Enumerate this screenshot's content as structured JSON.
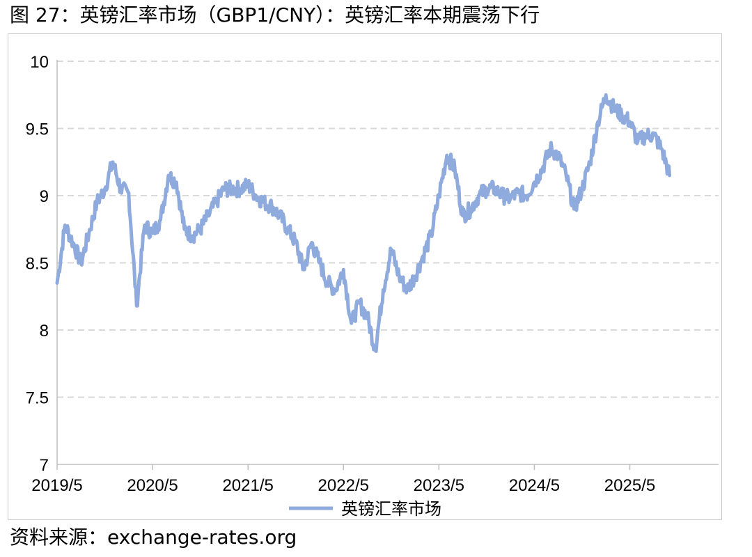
{
  "figure_title": "图 27：英镑汇率市场（GBP1/CNY）：英镑汇率本期震荡下行",
  "source": "资料来源：exchange-rates.org",
  "colors": {
    "series": "#8faadc",
    "grid": "#d9d9d9",
    "axis": "#bfbfbf"
  },
  "chart_data": {
    "type": "line",
    "title": "",
    "xlabel": "",
    "ylabel": "",
    "ylim": [
      7,
      10
    ],
    "yticks": [
      "7",
      "7.5",
      "8",
      "8.5",
      "9",
      "9.5",
      "10"
    ],
    "xticks": [
      "2019/5",
      "2020/5",
      "2021/5",
      "2022/5",
      "2023/5",
      "2024/5",
      "2025/5"
    ],
    "grid": "horizontal dashed",
    "legend": "bottom",
    "series": [
      {
        "name": "英镑汇率市场",
        "points": [
          [
            "2019/5",
            8.35
          ],
          [
            "2019/6",
            8.78
          ],
          [
            "2019/7",
            8.65
          ],
          [
            "2019/8",
            8.5
          ],
          [
            "2019/9",
            8.72
          ],
          [
            "2019/10",
            8.95
          ],
          [
            "2019/11",
            9.05
          ],
          [
            "2019/12",
            9.25
          ],
          [
            "2020/1",
            9.05
          ],
          [
            "2020/2",
            9.02
          ],
          [
            "2020/3",
            8.18
          ],
          [
            "2020/4",
            8.78
          ],
          [
            "2020/5",
            8.72
          ],
          [
            "2020/6",
            8.82
          ],
          [
            "2020/7",
            9.15
          ],
          [
            "2020/8",
            9.1
          ],
          [
            "2020/9",
            8.75
          ],
          [
            "2020/10",
            8.7
          ],
          [
            "2020/11",
            8.75
          ],
          [
            "2020/12",
            8.85
          ],
          [
            "2021/1",
            8.95
          ],
          [
            "2021/2",
            9.05
          ],
          [
            "2021/3",
            9.05
          ],
          [
            "2021/4",
            9.05
          ],
          [
            "2021/5",
            9.08
          ],
          [
            "2021/6",
            9.0
          ],
          [
            "2021/7",
            8.95
          ],
          [
            "2021/8",
            8.92
          ],
          [
            "2021/9",
            8.85
          ],
          [
            "2021/10",
            8.75
          ],
          [
            "2021/11",
            8.65
          ],
          [
            "2021/12",
            8.45
          ],
          [
            "2022/1",
            8.65
          ],
          [
            "2022/2",
            8.5
          ],
          [
            "2022/3",
            8.35
          ],
          [
            "2022/4",
            8.3
          ],
          [
            "2022/5",
            8.45
          ],
          [
            "2022/6",
            8.05
          ],
          [
            "2022/7",
            8.2
          ],
          [
            "2022/8",
            8.1
          ],
          [
            "2022/9",
            7.85
          ],
          [
            "2022/10",
            8.3
          ],
          [
            "2022/11",
            8.6
          ],
          [
            "2022/12",
            8.4
          ],
          [
            "2023/1",
            8.3
          ],
          [
            "2023/2",
            8.4
          ],
          [
            "2023/3",
            8.55
          ],
          [
            "2023/4",
            8.7
          ],
          [
            "2023/5",
            9.0
          ],
          [
            "2023/6",
            9.3
          ],
          [
            "2023/7",
            9.2
          ],
          [
            "2023/8",
            8.85
          ],
          [
            "2023/9",
            8.9
          ],
          [
            "2023/10",
            9.0
          ],
          [
            "2023/11",
            9.05
          ],
          [
            "2023/12",
            9.05
          ],
          [
            "2024/1",
            9.0
          ],
          [
            "2024/2",
            8.98
          ],
          [
            "2024/3",
            9.02
          ],
          [
            "2024/4",
            9.0
          ],
          [
            "2024/5",
            9.1
          ],
          [
            "2024/6",
            9.2
          ],
          [
            "2024/7",
            9.35
          ],
          [
            "2024/8",
            9.3
          ],
          [
            "2024/9",
            9.15
          ],
          [
            "2024/10",
            8.9
          ],
          [
            "2024/11",
            9.05
          ],
          [
            "2024/12",
            9.25
          ],
          [
            "2025/1",
            9.55
          ],
          [
            "2025/2",
            9.75
          ],
          [
            "2025/3",
            9.65
          ],
          [
            "2025/4",
            9.6
          ],
          [
            "2025/5",
            9.55
          ],
          [
            "2025/6",
            9.4
          ],
          [
            "2025/7",
            9.45
          ],
          [
            "2025/8",
            9.45
          ],
          [
            "2025/9",
            9.35
          ],
          [
            "2025/10",
            9.15
          ]
        ]
      }
    ]
  }
}
